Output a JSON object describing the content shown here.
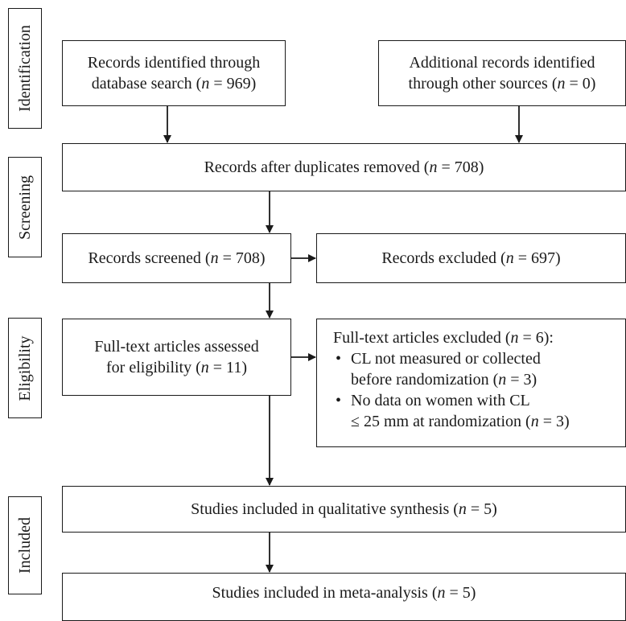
{
  "stages": {
    "identification": "Identification",
    "screening": "Screening",
    "eligibility": "Eligibility",
    "included": "Included"
  },
  "boxes": {
    "database_search": {
      "line1": "Records identified through",
      "line2_prefix": "database search (",
      "n_symbol": "n",
      "line2_suffix": " = 969)"
    },
    "other_sources": {
      "line1": "Additional records identified",
      "line2_prefix": "through other sources (",
      "n_symbol": "n",
      "line2_suffix": " = 0)"
    },
    "duplicates_removed": {
      "prefix": "Records after duplicates removed (",
      "n_symbol": "n",
      "suffix": " = 708)"
    },
    "screened": {
      "prefix": "Records screened (",
      "n_symbol": "n",
      "suffix": " = 708)"
    },
    "excluded": {
      "prefix": "Records excluded (",
      "n_symbol": "n",
      "suffix": " = 697)"
    },
    "fulltext_assessed": {
      "line1": "Full-text articles assessed",
      "line2_prefix": "for eligibility (",
      "n_symbol": "n",
      "line2_suffix": " = 11)"
    },
    "fulltext_excluded": {
      "heading_prefix": "Full-text articles excluded (",
      "n_symbol": "n",
      "heading_suffix": " = 6):",
      "reasons": [
        {
          "line1": "CL  not measured or collected",
          "line2_prefix": "before randomization (",
          "n_symbol": "n",
          "line2_suffix": " = 3)"
        },
        {
          "line1": "No data on women with CL",
          "line2_prefix": "≤ 25 mm at randomization (",
          "n_symbol": "n",
          "line2_suffix": " = 3)"
        }
      ]
    },
    "qualitative": {
      "prefix": "Studies included in qualitative synthesis (",
      "n_symbol": "n",
      "suffix": " = 5)"
    },
    "meta_analysis": {
      "prefix": "Studies included in meta-analysis (",
      "n_symbol": "n",
      "suffix": " = 5)"
    }
  }
}
